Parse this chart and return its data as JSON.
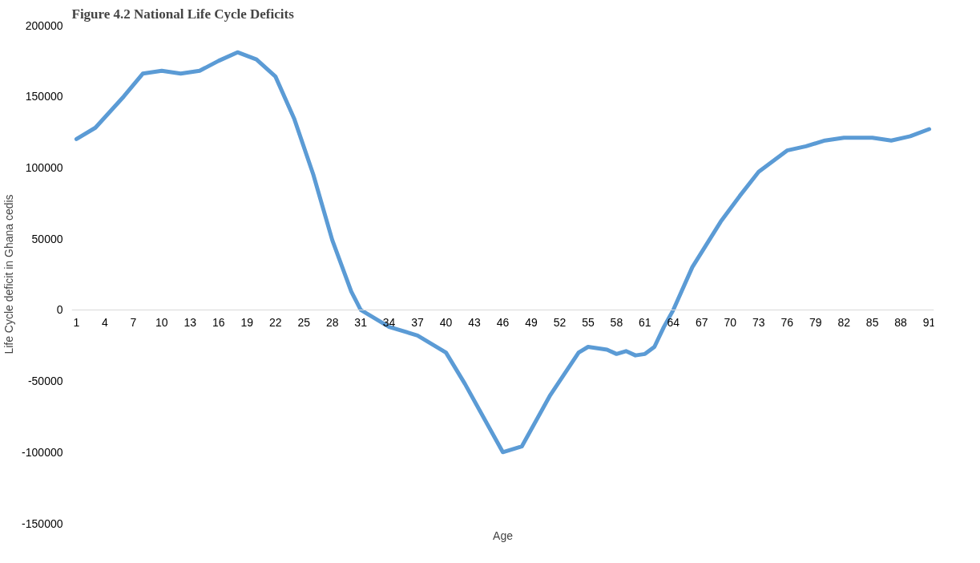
{
  "chart_data": {
    "type": "line",
    "title": "Figure 4.2 National Life Cycle Deficits",
    "xlabel": "Age",
    "ylabel": "Life Cycle deficit in Ghana cedis",
    "x": [
      1,
      3,
      6,
      8,
      10,
      12,
      14,
      16,
      18,
      20,
      22,
      24,
      26,
      28,
      30,
      31,
      34,
      37,
      40,
      42,
      45,
      46,
      48,
      51,
      54,
      55,
      57,
      58,
      59,
      60,
      61,
      62,
      63,
      64,
      66,
      69,
      71,
      73,
      76,
      78,
      80,
      82,
      85,
      87,
      89,
      91
    ],
    "series": [
      {
        "color": "#5b9bd5",
        "values": [
          120000,
          128000,
          150000,
          166000,
          168000,
          166000,
          168000,
          175000,
          181000,
          176000,
          164000,
          134000,
          95000,
          49000,
          13000,
          0,
          -12000,
          -18000,
          -30000,
          -52000,
          -88000,
          -100000,
          -96000,
          -60000,
          -30000,
          -26000,
          -28000,
          -31000,
          -29000,
          -32000,
          -31000,
          -26000,
          -12000,
          0,
          30000,
          62000,
          80000,
          97000,
          112000,
          115000,
          119000,
          121000,
          121000,
          119000,
          122000,
          127000
        ]
      }
    ],
    "xlim": [
      0.5,
      91.5
    ],
    "xticks": [
      1,
      4,
      7,
      10,
      13,
      16,
      19,
      22,
      25,
      28,
      31,
      34,
      37,
      40,
      43,
      46,
      49,
      52,
      55,
      58,
      61,
      64,
      67,
      70,
      73,
      76,
      79,
      82,
      85,
      88,
      91
    ],
    "ylim": [
      -150000,
      200000
    ],
    "yticks": [
      -150000,
      -100000,
      -50000,
      0,
      50000,
      100000,
      150000,
      200000
    ],
    "grid": false,
    "marker": "none",
    "line_style": "solid"
  }
}
